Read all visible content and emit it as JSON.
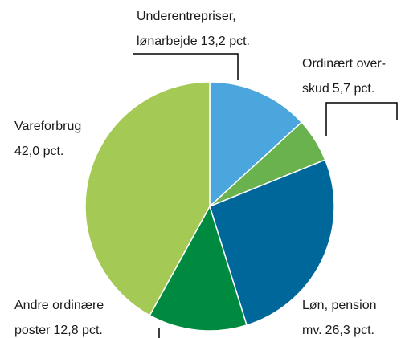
{
  "chart_data": {
    "type": "pie",
    "categories": [
      [
        "Underentrepriser,",
        "lønarbejde"
      ],
      [
        "Ordinært over-",
        "skud"
      ],
      [
        "Løn, pension",
        "mv."
      ],
      [
        "Andre ordinære",
        "poster"
      ],
      [
        "Vareforbrug"
      ]
    ],
    "values": [
      13.2,
      5.7,
      26.3,
      12.8,
      42.0
    ],
    "value_labels": [
      "13,2 pct.",
      "5,7 pct.",
      "26,3 pct.",
      "12,8 pct.",
      "42,0 pct."
    ],
    "colors": [
      "#4ba6de",
      "#69b24e",
      "#00679a",
      "#008a40",
      "#a4c954"
    ]
  }
}
